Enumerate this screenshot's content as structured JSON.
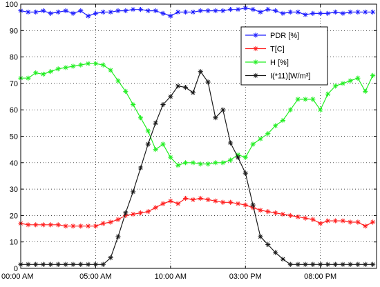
{
  "chart_data": {
    "type": "line",
    "title": "",
    "xlabel": "",
    "ylabel": "",
    "ylim": [
      0,
      100
    ],
    "yticks": [
      0,
      10,
      20,
      30,
      40,
      50,
      60,
      70,
      80,
      90,
      100
    ],
    "x_unit": "hours from 00:00 AM",
    "xlim": [
      0,
      23.75
    ],
    "xticks": [
      {
        "x": 0,
        "label": "00:00 AM"
      },
      {
        "x": 5,
        "label": "05:00 AM"
      },
      {
        "x": 10,
        "label": "10:00 AM"
      },
      {
        "x": 15,
        "label": "03:00 PM"
      },
      {
        "x": 20,
        "label": "08:00 PM"
      }
    ],
    "grid": true,
    "legend_position": "top-right",
    "series": [
      {
        "name": "PDR [%]",
        "color": "#1f1fff",
        "marker": "asterisk",
        "x": [
          0,
          0.5,
          1,
          1.5,
          2,
          2.5,
          3,
          3.5,
          4,
          4.5,
          5,
          5.5,
          6,
          6.5,
          7,
          7.5,
          8,
          8.5,
          9,
          9.5,
          10,
          10.5,
          11,
          11.5,
          12,
          12.5,
          13,
          13.5,
          14,
          14.5,
          15,
          15.5,
          16,
          16.5,
          17,
          17.5,
          18,
          18.5,
          19,
          19.5,
          20,
          20.5,
          21,
          21.5,
          22,
          22.5,
          23,
          23.5
        ],
        "values": [
          97.5,
          97,
          97,
          97.5,
          96.5,
          97,
          97.5,
          96.5,
          97.5,
          95.5,
          96.5,
          97,
          97,
          97.5,
          97.5,
          98,
          98,
          97.5,
          97.5,
          96.5,
          95.5,
          97,
          97,
          97,
          97.5,
          97.5,
          97.5,
          97.5,
          98,
          98,
          98.5,
          98,
          97,
          98,
          97.5,
          96.5,
          97,
          97,
          96,
          96.5,
          96.5,
          96.5,
          97,
          96.5,
          97,
          97,
          97,
          97
        ]
      },
      {
        "name": "T[C]",
        "color": "#ff2020",
        "marker": "asterisk",
        "x": [
          0,
          0.5,
          1,
          1.5,
          2,
          2.5,
          3,
          3.5,
          4,
          4.5,
          5,
          5.5,
          6,
          6.5,
          7,
          7.5,
          8,
          8.5,
          9,
          9.5,
          10,
          10.5,
          11,
          11.5,
          12,
          12.5,
          13,
          13.5,
          14,
          14.5,
          15,
          15.5,
          16,
          16.5,
          17,
          17.5,
          18,
          18.5,
          19,
          19.5,
          20,
          20.5,
          21,
          21.5,
          22,
          22.5,
          23,
          23.5
        ],
        "values": [
          17,
          16.5,
          16.5,
          16.5,
          16.5,
          16.5,
          16,
          16,
          16,
          16,
          16,
          17,
          17.5,
          18.5,
          20,
          20.5,
          21,
          21.5,
          23,
          24.5,
          25.5,
          24.5,
          26.5,
          26,
          26.5,
          26,
          25.5,
          25,
          25,
          24.5,
          24,
          23,
          22,
          21.5,
          21,
          20.5,
          20,
          19.5,
          19,
          18.5,
          17,
          18,
          18,
          18,
          17.5,
          17.5,
          16,
          17.5
        ]
      },
      {
        "name": "H [%]",
        "color": "#22ee22",
        "marker": "asterisk",
        "x": [
          0,
          0.5,
          1,
          1.5,
          2,
          2.5,
          3,
          3.5,
          4,
          4.5,
          5,
          5.5,
          6,
          6.5,
          7,
          7.5,
          8,
          8.5,
          9,
          9.5,
          10,
          10.5,
          11,
          11.5,
          12,
          12.5,
          13,
          13.5,
          14,
          14.5,
          15,
          15.5,
          16,
          16.5,
          17,
          17.5,
          18,
          18.5,
          19,
          19.5,
          20,
          20.5,
          21,
          21.5,
          22,
          22.5,
          23,
          23.5
        ],
        "values": [
          72,
          72,
          74,
          73.5,
          74.5,
          75.5,
          76,
          76.5,
          77,
          77.5,
          77.5,
          77,
          75,
          71,
          67,
          62,
          57,
          52,
          45,
          47,
          42,
          39,
          40,
          40,
          39.5,
          39.5,
          40,
          40,
          41,
          43,
          42,
          47,
          49,
          51,
          54,
          56,
          60,
          64,
          64,
          64,
          60,
          66,
          69,
          70,
          71,
          72,
          67,
          73
        ]
      },
      {
        "name": "I(*11)[W/m³]",
        "color": "#1a1a1a",
        "marker": "asterisk",
        "x": [
          0,
          0.5,
          1,
          1.5,
          2,
          2.5,
          3,
          3.5,
          4,
          4.5,
          5,
          5.5,
          6,
          6.5,
          7,
          7.5,
          8,
          8.5,
          9,
          9.5,
          10,
          10.5,
          11,
          11.5,
          12,
          12.5,
          13,
          13.5,
          14,
          14.5,
          15,
          15.5,
          16,
          16.5,
          17,
          17.5,
          18,
          18.5,
          19,
          19.5,
          20,
          20.5,
          21,
          21.5,
          22,
          22.5,
          23,
          23.5
        ],
        "values": [
          1.5,
          1.5,
          1.5,
          1.5,
          1.5,
          1.5,
          1.5,
          1.5,
          1.5,
          1.5,
          1.5,
          1.5,
          4,
          12,
          21,
          29,
          38,
          47,
          55,
          62,
          65,
          69,
          68.5,
          66.5,
          74.5,
          70.5,
          57,
          60,
          47.5,
          42,
          36,
          24,
          12,
          9,
          6,
          3.5,
          1.5,
          1.5,
          1.5,
          1.5,
          1.5,
          1.5,
          1.5,
          1.5,
          1.5,
          1.5,
          1.5,
          1.5
        ]
      }
    ]
  }
}
